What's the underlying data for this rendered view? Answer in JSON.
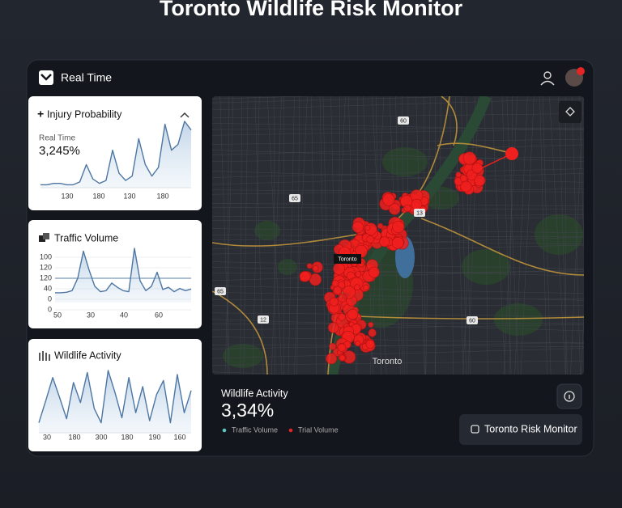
{
  "page_title": "Toronto Wildlife Risk Monitor",
  "header": {
    "title": "Real Time"
  },
  "panels": [
    {
      "title": "Injury Probability",
      "subtitle": "Real Time",
      "value": "3,245%",
      "x_labels": [
        "130",
        "180",
        "130",
        "180"
      ],
      "values": [
        2,
        2,
        3,
        3,
        2,
        2,
        4,
        16,
        6,
        3,
        5,
        26,
        10,
        5,
        8,
        34,
        16,
        8,
        14,
        44,
        26,
        30,
        46,
        40
      ]
    },
    {
      "title": "Traffic Volume",
      "y_labels": [
        "100",
        "120",
        "120",
        "40",
        "0",
        "0"
      ],
      "x_labels": [
        "50",
        "30",
        "40",
        "60"
      ],
      "values": [
        18,
        18,
        19,
        22,
        45,
        95,
        60,
        30,
        20,
        22,
        36,
        28,
        22,
        20,
        100,
        40,
        22,
        30,
        56,
        24,
        28,
        20,
        26,
        22,
        25
      ]
    },
    {
      "title": "Wildlife Activity",
      "x_labels": [
        "30",
        "180",
        "300",
        "180",
        "190",
        "160"
      ],
      "values": [
        10,
        32,
        55,
        35,
        14,
        50,
        30,
        60,
        24,
        10,
        62,
        40,
        15,
        55,
        20,
        46,
        12,
        38,
        52,
        10,
        58,
        20,
        42
      ]
    }
  ],
  "map": {
    "city_label": "Toronto",
    "marker_label": "Toronto",
    "road_labels": [
      "60",
      "13",
      "65",
      "12",
      "60",
      "65"
    ]
  },
  "footer": {
    "title": "Wildlife Activity",
    "value": "3,34%",
    "legend": [
      "Traffic Volume",
      "Trial Volume"
    ],
    "button": "Toronto Risk Monitor"
  }
}
